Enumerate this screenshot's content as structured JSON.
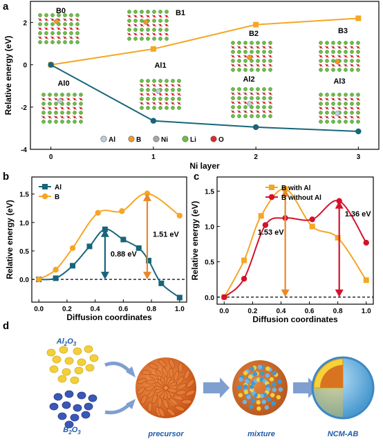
{
  "panels": {
    "a": "a",
    "b": "b",
    "c": "c",
    "d": "d"
  },
  "colors": {
    "orange": "#f5a623",
    "teal": "#17657a",
    "red": "#d3122c",
    "arrow_orange": "#e8872a",
    "arrow_teal": "#17657a",
    "arrow_red": "#d3122c",
    "process_text": "#1f5aa8",
    "process_arrow": "#7f9fd1"
  },
  "chart_data": [
    {
      "id": "a",
      "type": "line",
      "xlabel": "Ni layer",
      "ylabel": "Relative energy (eV)",
      "xlim": [
        -0.2,
        3.2
      ],
      "ylim": [
        -4,
        3
      ],
      "xticks": [
        0,
        1,
        2,
        3
      ],
      "yticks": [
        -4,
        -2,
        0,
        2
      ],
      "series": [
        {
          "key": "B",
          "color": "#f5a623",
          "marker": "square",
          "x": [
            0,
            1,
            2,
            3
          ],
          "values": [
            0,
            0.75,
            1.9,
            2.2
          ]
        },
        {
          "key": "Al",
          "color": "#17657a",
          "marker": "circle",
          "x": [
            0,
            1,
            2,
            3
          ],
          "values": [
            0,
            -2.65,
            -2.95,
            -3.15
          ]
        }
      ],
      "structure_labels": [
        "B0",
        "B1",
        "B2",
        "B3",
        "Al0",
        "Al1",
        "Al2",
        "Al3"
      ],
      "atom_legend": [
        {
          "symbol": "Al",
          "color": "#bcd0dc"
        },
        {
          "symbol": "B",
          "color": "#f29a1f"
        },
        {
          "symbol": "Ni",
          "color": "#a7a7a7"
        },
        {
          "symbol": "Li",
          "color": "#6cbd45"
        },
        {
          "symbol": "O",
          "color": "#e3272b"
        }
      ]
    },
    {
      "id": "b",
      "type": "line",
      "xlabel": "Diffusion coordinates",
      "ylabel": "Relative energy (eV)",
      "xlim": [
        -0.05,
        1.05
      ],
      "ylim": [
        -0.4,
        1.8
      ],
      "xticks": [
        0.0,
        0.2,
        0.4,
        0.6,
        0.8,
        1.0
      ],
      "yticks": [
        0.0,
        0.5,
        1.0,
        1.5
      ],
      "legend": [
        "Al",
        "B"
      ],
      "legend_position": "top-left",
      "series": [
        {
          "name": "Al",
          "color": "#17657a",
          "marker": "square",
          "x": [
            0.0,
            0.12,
            0.24,
            0.36,
            0.47,
            0.6,
            0.71,
            0.78,
            0.87,
            1.0
          ],
          "values": [
            0.0,
            0.02,
            0.24,
            0.58,
            0.88,
            0.7,
            0.55,
            0.33,
            -0.07,
            -0.32
          ]
        },
        {
          "name": "B",
          "color": "#f5a623",
          "marker": "circle",
          "x": [
            0.0,
            0.12,
            0.24,
            0.42,
            0.59,
            0.77,
            1.0
          ],
          "values": [
            0.0,
            0.17,
            0.55,
            1.17,
            1.2,
            1.51,
            1.12
          ]
        }
      ],
      "annotations": [
        {
          "text": "0.88 eV",
          "x": 0.47,
          "from": 0.0,
          "to": 0.88,
          "color": "#17657a"
        },
        {
          "text": "1.51 eV",
          "x": 0.77,
          "from": 0.0,
          "to": 1.51,
          "color": "#e8872a"
        }
      ]
    },
    {
      "id": "c",
      "type": "line",
      "xlabel": "Diffusion coordinates",
      "ylabel": "Relative energy (eV)",
      "xlim": [
        -0.05,
        1.05
      ],
      "ylim": [
        -0.1,
        1.7
      ],
      "xticks": [
        0.0,
        0.2,
        0.4,
        0.6,
        0.8,
        1.0
      ],
      "yticks": [
        0.0,
        0.5,
        1.0,
        1.5
      ],
      "legend": [
        "B with Al",
        "B without Al"
      ],
      "legend_position": "top-right",
      "series": [
        {
          "name": "B with Al",
          "color": "#f5a623",
          "marker": "square",
          "x": [
            0.0,
            0.14,
            0.26,
            0.43,
            0.62,
            0.8,
            1.0
          ],
          "values": [
            0.0,
            0.52,
            1.15,
            1.53,
            1.0,
            0.84,
            0.24
          ]
        },
        {
          "name": "B without Al",
          "color": "#d3122c",
          "marker": "circle",
          "x": [
            0.0,
            0.14,
            0.29,
            0.43,
            0.62,
            0.81,
            1.0
          ],
          "values": [
            0.0,
            0.26,
            1.02,
            1.12,
            1.1,
            1.36,
            0.77
          ]
        }
      ],
      "annotations": [
        {
          "text": "1.53 eV",
          "x": 0.43,
          "from": 0.0,
          "to": 1.53,
          "color": "#e8872a"
        },
        {
          "text": "1.36 eV",
          "x": 0.81,
          "from": 0.0,
          "to": 1.36,
          "color": "#d3122c"
        }
      ]
    }
  ],
  "process": {
    "al2o3": {
      "main": "Al",
      "sub1": "2",
      "mid": "O",
      "sub2": "3"
    },
    "b2o3": {
      "main": "B",
      "sub1": "2",
      "mid": "O",
      "sub2": "3"
    },
    "steps": [
      "precursor",
      "mixture",
      "NCM-AB"
    ]
  }
}
